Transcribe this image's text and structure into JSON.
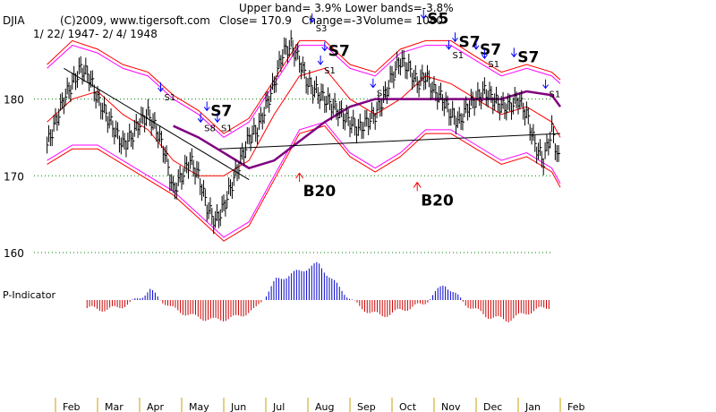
{
  "header": {
    "line1": "Upper band= 3.9%  Lower bands=-3.8%",
    "index": "DJIA",
    "credit": "(C)2009, www.tigersoft.com",
    "close": "Close=  170.9",
    "change": "Change=-3",
    "volume": "Volume= 1080",
    "date_range": "1/ 22/ 1947- 2/ 4/ 1948"
  },
  "colors": {
    "price": "#000000",
    "upper_band": "#ff00ff",
    "ma": "#ff0000",
    "ma_long": "#800080",
    "signal_buy": "#ff0000",
    "signal_sell": "#0000ff",
    "indicator_pos": "#0000cc",
    "indicator_neg": "#cc0000",
    "grid": "#008000"
  },
  "indicator_label": "P-Indicator",
  "chart_data": {
    "type": "line",
    "title": "DJIA",
    "ylim": [
      160,
      188
    ],
    "yticks": [
      "180",
      "170",
      "160"
    ],
    "ytick_values": [
      180,
      170,
      160
    ],
    "grid": true,
    "x_ticks": [
      "Feb",
      "Mar",
      "Apr",
      "May",
      "Jun",
      "Jul",
      "Aug",
      "Sep",
      "Oct",
      "Nov",
      "Dec",
      "Jan",
      "Feb"
    ],
    "x_tick_months": [
      0,
      1,
      2,
      3,
      4,
      5,
      6,
      7,
      8,
      9,
      10,
      11,
      12
    ],
    "series": [
      {
        "key": "price",
        "x": [
          -0.2,
          0,
          0.2,
          0.4,
          0.6,
          0.8,
          1,
          1.2,
          1.4,
          1.6,
          1.8,
          2,
          2.2,
          2.4,
          2.6,
          2.8,
          3,
          3.2,
          3.4,
          3.6,
          3.8,
          4,
          4.2,
          4.4,
          4.6,
          4.8,
          5,
          5.2,
          5.4,
          5.6,
          5.8,
          6,
          6.2,
          6.4,
          6.6,
          6.8,
          7,
          7.2,
          7.4,
          7.6,
          7.8,
          8,
          8.2,
          8.4,
          8.6,
          8.8,
          9,
          9.2,
          9.4,
          9.6,
          9.8,
          10,
          10.2,
          10.4,
          10.6,
          10.8,
          11,
          11.2,
          11.4,
          11.6,
          11.8,
          12
        ],
        "values": [
          174,
          177,
          180,
          182,
          184,
          183,
          180,
          178,
          176,
          174,
          175,
          177,
          178,
          176,
          173,
          168,
          170,
          172,
          170,
          166,
          164,
          166,
          169,
          172,
          175,
          176,
          179,
          182,
          186,
          187,
          185,
          182,
          181,
          180,
          179,
          178,
          177,
          176,
          177,
          178,
          180,
          183,
          185,
          184,
          182,
          183,
          181,
          180,
          178,
          177,
          179,
          180,
          181,
          180,
          179,
          179,
          180,
          178,
          174,
          172,
          176,
          171
        ]
      },
      {
        "key": "upper_band",
        "x": [
          -0.2,
          0.4,
          1,
          1.6,
          2.2,
          2.8,
          3.4,
          4,
          4.6,
          5.2,
          5.8,
          6.4,
          7,
          7.6,
          8.2,
          8.8,
          9.4,
          10,
          10.6,
          11.2,
          11.8,
          12
        ],
        "values": [
          184,
          187,
          186,
          184,
          183,
          180,
          178,
          175,
          177,
          182,
          187,
          187,
          184,
          183,
          186,
          187,
          187,
          185,
          183,
          184,
          183,
          182
        ]
      },
      {
        "key": "upper_band_outer",
        "x": [
          -0.2,
          0.4,
          1,
          1.6,
          2.2,
          2.8,
          3.4,
          4,
          4.6,
          5.2,
          5.8,
          6.4,
          7,
          7.6,
          8.2,
          8.8,
          9.4,
          10,
          10.6,
          11.2,
          11.8,
          12
        ],
        "values": [
          184.5,
          187.6,
          186.5,
          184.5,
          183.5,
          180.5,
          178.5,
          175.5,
          177.5,
          182.5,
          187.6,
          187.6,
          184.5,
          183.5,
          186.5,
          187.6,
          187.6,
          185.5,
          183.5,
          184.5,
          183.5,
          182.5
        ]
      },
      {
        "key": "ma",
        "x": [
          -0.2,
          0.4,
          1,
          1.6,
          2.2,
          2.8,
          3.4,
          4,
          4.6,
          5.2,
          5.8,
          6.4,
          7,
          7.6,
          8.2,
          8.8,
          9.4,
          10,
          10.6,
          11.2,
          11.8,
          12
        ],
        "values": [
          177,
          180,
          181,
          178,
          176,
          172,
          170,
          170,
          172,
          178,
          183,
          184,
          180,
          178,
          180,
          183,
          182,
          180,
          178,
          179,
          177,
          175
        ]
      },
      {
        "key": "lower_band",
        "x": [
          -0.2,
          0.4,
          1,
          1.6,
          2.2,
          2.8,
          3.4,
          4,
          4.6,
          5.2,
          5.8,
          6.4,
          7,
          7.6,
          8.2,
          8.8,
          9.4,
          10,
          10.6,
          11.2,
          11.8,
          12
        ],
        "values": [
          172,
          174,
          174,
          172,
          170,
          168,
          165,
          162,
          164,
          170,
          176,
          177,
          173,
          171,
          173,
          176,
          176,
          174,
          172,
          173,
          171,
          169
        ]
      },
      {
        "key": "lower_band_outer",
        "x": [
          -0.2,
          0.4,
          1,
          1.6,
          2.2,
          2.8,
          3.4,
          4,
          4.6,
          5.2,
          5.8,
          6.4,
          7,
          7.6,
          8.2,
          8.8,
          9.4,
          10,
          10.6,
          11.2,
          11.8,
          12
        ],
        "values": [
          171.5,
          173.5,
          173.5,
          171.5,
          169.5,
          167.5,
          164.5,
          161.5,
          163.5,
          169.5,
          175.5,
          176.5,
          172.5,
          170.5,
          172.5,
          175.5,
          175.5,
          173.5,
          171.5,
          172.5,
          170.5,
          168.5
        ]
      },
      {
        "key": "ma_long",
        "x": [
          2.8,
          3.4,
          4,
          4.6,
          5.2,
          5.8,
          6.4,
          7,
          7.6,
          8.2,
          8.8,
          9.4,
          10,
          10.6,
          11.2,
          11.8,
          12
        ],
        "values": [
          176.5,
          175,
          173,
          171,
          172,
          174.5,
          177,
          179,
          180,
          180,
          180,
          180,
          180,
          180,
          181,
          180.5,
          179
        ]
      },
      {
        "key": "trendline_down",
        "x": [
          0.2,
          4.6
        ],
        "values": [
          184,
          169.5
        ]
      },
      {
        "key": "trendline_flat",
        "x": [
          3.9,
          12
        ],
        "values": [
          173.5,
          175.5
        ]
      }
    ],
    "signals": [
      {
        "label": "S1",
        "x": 2.5,
        "y": 181,
        "kind": "sell",
        "size": "small"
      },
      {
        "label": "S7",
        "x": 3.6,
        "y": 178.5,
        "kind": "sell",
        "size": "big"
      },
      {
        "label": "S8",
        "x": 3.45,
        "y": 177,
        "kind": "sell",
        "size": "small"
      },
      {
        "label": "S1",
        "x": 3.85,
        "y": 177,
        "kind": "sell",
        "size": "small"
      },
      {
        "label": "S3",
        "x": 6.1,
        "y": 190,
        "kind": "sell",
        "size": "small"
      },
      {
        "label": "S7",
        "x": 6.4,
        "y": 186.3,
        "kind": "sell",
        "size": "big"
      },
      {
        "label": "S1",
        "x": 6.3,
        "y": 184.5,
        "kind": "sell",
        "size": "small"
      },
      {
        "label": "S1",
        "x": 7.55,
        "y": 181.5,
        "kind": "sell",
        "size": "small"
      },
      {
        "label": "S5",
        "x": 8.75,
        "y": 190.5,
        "kind": "sell",
        "size": "big"
      },
      {
        "label": "S7",
        "x": 9.5,
        "y": 187.5,
        "kind": "sell",
        "size": "big"
      },
      {
        "label": "S1",
        "x": 9.35,
        "y": 186.5,
        "kind": "sell",
        "size": "small"
      },
      {
        "label": "S7",
        "x": 10.0,
        "y": 186.5,
        "kind": "sell",
        "size": "big"
      },
      {
        "label": "S1",
        "x": 10.2,
        "y": 185.3,
        "kind": "sell",
        "size": "small"
      },
      {
        "label": "S7",
        "x": 10.9,
        "y": 185.5,
        "kind": "sell",
        "size": "big"
      },
      {
        "label": "S1",
        "x": 11.65,
        "y": 181.4,
        "kind": "sell",
        "size": "small"
      },
      {
        "label": "B20",
        "x": 5.8,
        "y": 169.2,
        "kind": "buy",
        "size": "big"
      },
      {
        "label": "B20",
        "x": 8.6,
        "y": 168,
        "kind": "buy",
        "size": "big"
      }
    ],
    "p_indicator": {
      "x": [
        0,
        0.5,
        1,
        1.5,
        2,
        2.5,
        3,
        3.5,
        4,
        4.5,
        5,
        5.5,
        6,
        6.5,
        7,
        7.5,
        8,
        8.5,
        9,
        9.5,
        10,
        10.5,
        11,
        11.5,
        12
      ],
      "values": [
        -10,
        -12,
        -5,
        12,
        -10,
        -20,
        -25,
        -22,
        -12,
        25,
        35,
        45,
        15,
        -10,
        -20,
        -12,
        -5,
        20,
        -5,
        -20,
        -25,
        -15,
        -8,
        5,
        -18
      ],
      "ylim": [
        -50,
        50
      ]
    }
  }
}
